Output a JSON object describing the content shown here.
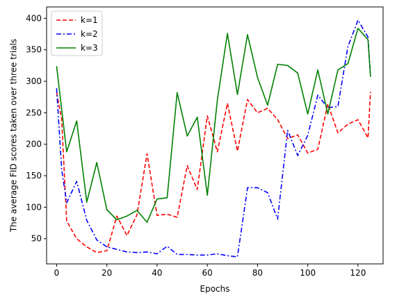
{
  "chart_data": {
    "type": "line",
    "title": "",
    "xlabel": "Epochs",
    "ylabel": "The average FID scores taken over three trials",
    "xlim": [
      -4,
      130
    ],
    "ylim": [
      10,
      418
    ],
    "xticks": [
      0,
      20,
      40,
      60,
      80,
      100,
      120
    ],
    "yticks": [
      50,
      100,
      150,
      200,
      250,
      300,
      350,
      400
    ],
    "grid": false,
    "legend": {
      "position": "top-left"
    },
    "series": [
      {
        "name": "k=1",
        "color": "#ff0000",
        "dash": "dashed",
        "x": [
          0,
          2,
          4,
          8,
          12,
          16,
          20,
          24,
          28,
          32,
          36,
          40,
          44,
          48,
          52,
          56,
          60,
          64,
          68,
          72,
          76,
          80,
          84,
          88,
          92,
          96,
          100,
          104,
          108,
          112,
          116,
          120,
          124,
          125
        ],
        "y": [
          282,
          240,
          78,
          50,
          37,
          28,
          31,
          86,
          55,
          88,
          185,
          87,
          89,
          84,
          166,
          128,
          245,
          188,
          265,
          189,
          271,
          250,
          257,
          239,
          209,
          215,
          186,
          192,
          264,
          218,
          232,
          239,
          210,
          283
        ]
      },
      {
        "name": "k=2",
        "color": "#0000ff",
        "dash": "dashdot",
        "x": [
          0,
          2,
          4,
          8,
          12,
          16,
          20,
          24,
          28,
          32,
          36,
          40,
          44,
          48,
          52,
          56,
          60,
          64,
          68,
          72,
          76,
          80,
          84,
          88,
          92,
          96,
          100,
          104,
          108,
          112,
          116,
          120,
          124,
          125
        ],
        "y": [
          289,
          160,
          107,
          141,
          79,
          48,
          37,
          33,
          29,
          28,
          29,
          26,
          38,
          25,
          25,
          24,
          24,
          26,
          23,
          21,
          131,
          131,
          123,
          81,
          222,
          182,
          214,
          278,
          258,
          260,
          355,
          397,
          370,
          309
        ]
      },
      {
        "name": "k=3",
        "color": "#008000",
        "dash": "solid",
        "x": [
          0,
          4,
          8,
          12,
          16,
          20,
          24,
          28,
          32,
          36,
          40,
          44,
          48,
          52,
          56,
          60,
          64,
          68,
          72,
          76,
          80,
          84,
          88,
          92,
          96,
          100,
          104,
          108,
          112,
          116,
          120,
          124,
          125
        ],
        "y": [
          324,
          188,
          237,
          108,
          171,
          96,
          80,
          86,
          95,
          76,
          113,
          115,
          282,
          213,
          243,
          119,
          270,
          376,
          279,
          374,
          306,
          262,
          327,
          325,
          313,
          248,
          318,
          248,
          318,
          328,
          384,
          366,
          307
        ]
      }
    ]
  }
}
